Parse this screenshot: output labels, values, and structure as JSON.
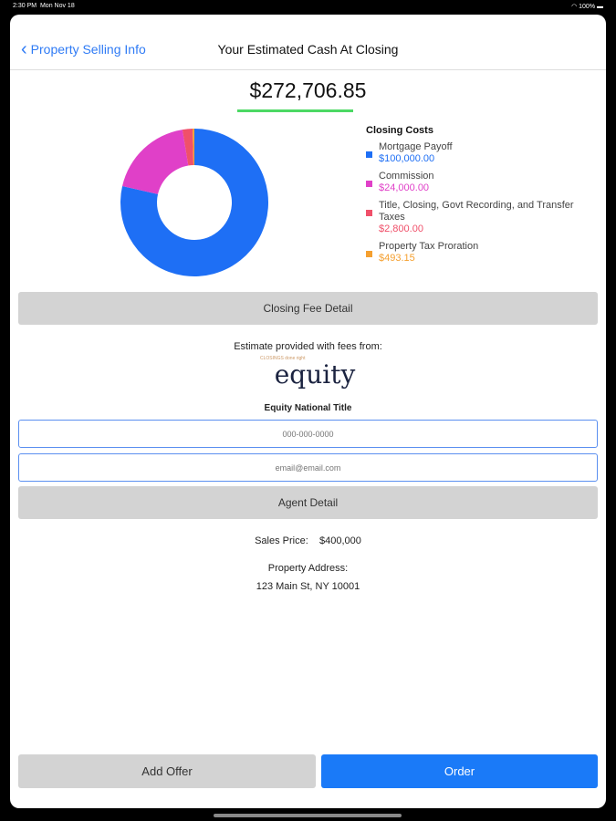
{
  "status": {
    "time": "2:30 PM",
    "date": "Mon Nov 18",
    "battery": "100%"
  },
  "nav": {
    "back_label": "Property Selling Info",
    "title": "Your Estimated Cash At Closing"
  },
  "total": "$272,706.85",
  "colors": {
    "accent": "#2f7bf5",
    "underline": "#4cd964"
  },
  "chart_data": {
    "type": "pie",
    "title": "Closing Costs",
    "series": [
      {
        "name": "Mortgage Payoff",
        "value": 100000,
        "label": "$100,000.00",
        "color": "#1e6ff5"
      },
      {
        "name": "Commission",
        "value": 24000,
        "label": "$24,000.00",
        "color": "#e040c8"
      },
      {
        "name": "Title, Closing, Govt Recording, and Transfer Taxes",
        "value": 2800,
        "label": "$2,800.00",
        "color": "#f0506a"
      },
      {
        "name": "Property Tax Proration",
        "value": 493.15,
        "label": "$493.15",
        "color": "#f5a030"
      }
    ]
  },
  "closing_fee_button": "Closing Fee Detail",
  "estimate_text": "Estimate provided with fees from:",
  "logo": {
    "text": "equity",
    "tagline": "CLOSINGS done right"
  },
  "company": "Equity National Title",
  "phone": {
    "placeholder": "000-000-0000"
  },
  "email": {
    "placeholder": "email@email.com"
  },
  "agent_button": "Agent Detail",
  "sales_price_label": "Sales Price:",
  "sales_price": "$400,000",
  "address_label": "Property Address:",
  "address": "123 Main St, NY 10001",
  "add_offer": "Add Offer",
  "order": "Order"
}
